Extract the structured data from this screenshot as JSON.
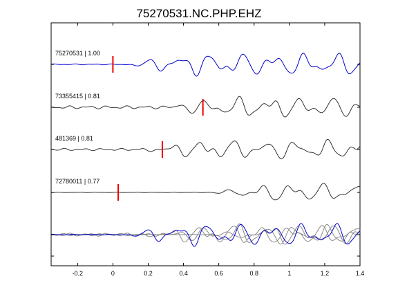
{
  "chart_data": {
    "type": "line",
    "title": "75270531.NC.PHP.EHZ",
    "xlabel": "",
    "ylabel": "",
    "xlim": [
      -0.35,
      1.4
    ],
    "xticks": [
      -0.2,
      0,
      0.2,
      0.4,
      0.6,
      0.8,
      1,
      1.2,
      1.4
    ],
    "xtick_labels": [
      "-0.2",
      "0",
      "0.2",
      "0.4",
      "0.6",
      "0.8",
      "1",
      "1.2",
      "1.4"
    ],
    "grid": false,
    "colors": {
      "reference": "#0000cc",
      "trace": "#333333",
      "stack": "#888888",
      "pick": "#ee0000"
    },
    "traces": [
      {
        "label": "75270531 | 1.00",
        "pick": 0.0,
        "onset": 0.05,
        "amp": 1.15,
        "color": "#0000cc",
        "seed": 1,
        "noise": 0.05
      },
      {
        "label": "73355415 | 0.81",
        "pick": 0.51,
        "onset": 0.25,
        "amp": 1.0,
        "color": "#333333",
        "seed": 2,
        "noise": 0.16
      },
      {
        "label": "481369 | 0.81",
        "pick": 0.28,
        "onset": 0.15,
        "amp": 0.95,
        "color": "#333333",
        "seed": 3,
        "noise": 0.12
      },
      {
        "label": "72780011 | 0.77",
        "pick": 0.03,
        "onset": 0.55,
        "amp": 0.95,
        "color": "#333333",
        "seed": 4,
        "noise": 0.02
      }
    ]
  }
}
